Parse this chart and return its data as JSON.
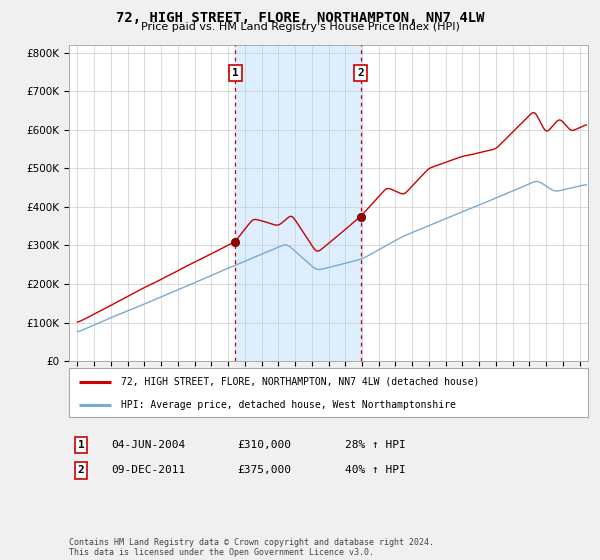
{
  "title": "72, HIGH STREET, FLORE, NORTHAMPTON, NN7 4LW",
  "subtitle": "Price paid vs. HM Land Registry's House Price Index (HPI)",
  "legend_line1": "72, HIGH STREET, FLORE, NORTHAMPTON, NN7 4LW (detached house)",
  "legend_line2": "HPI: Average price, detached house, West Northamptonshire",
  "annotation1_label": "1",
  "annotation1_date": "04-JUN-2004",
  "annotation1_price": "£310,000",
  "annotation1_hpi": "28% ↑ HPI",
  "annotation2_label": "2",
  "annotation2_date": "09-DEC-2011",
  "annotation2_price": "£375,000",
  "annotation2_hpi": "40% ↑ HPI",
  "footnote": "Contains HM Land Registry data © Crown copyright and database right 2024.\nThis data is licensed under the Open Government Licence v3.0.",
  "sale1_year": 2004.43,
  "sale1_value": 310000,
  "sale2_year": 2011.94,
  "sale2_value": 375000,
  "red_color": "#cc0000",
  "blue_color": "#7aaad0",
  "shade_color": "#ddeeff",
  "grid_color": "#cccccc",
  "plot_bg": "#ffffff",
  "fig_bg": "#f0f0f0",
  "ylim": [
    0,
    820000
  ],
  "xstart": 1994.5,
  "xend": 2025.5
}
